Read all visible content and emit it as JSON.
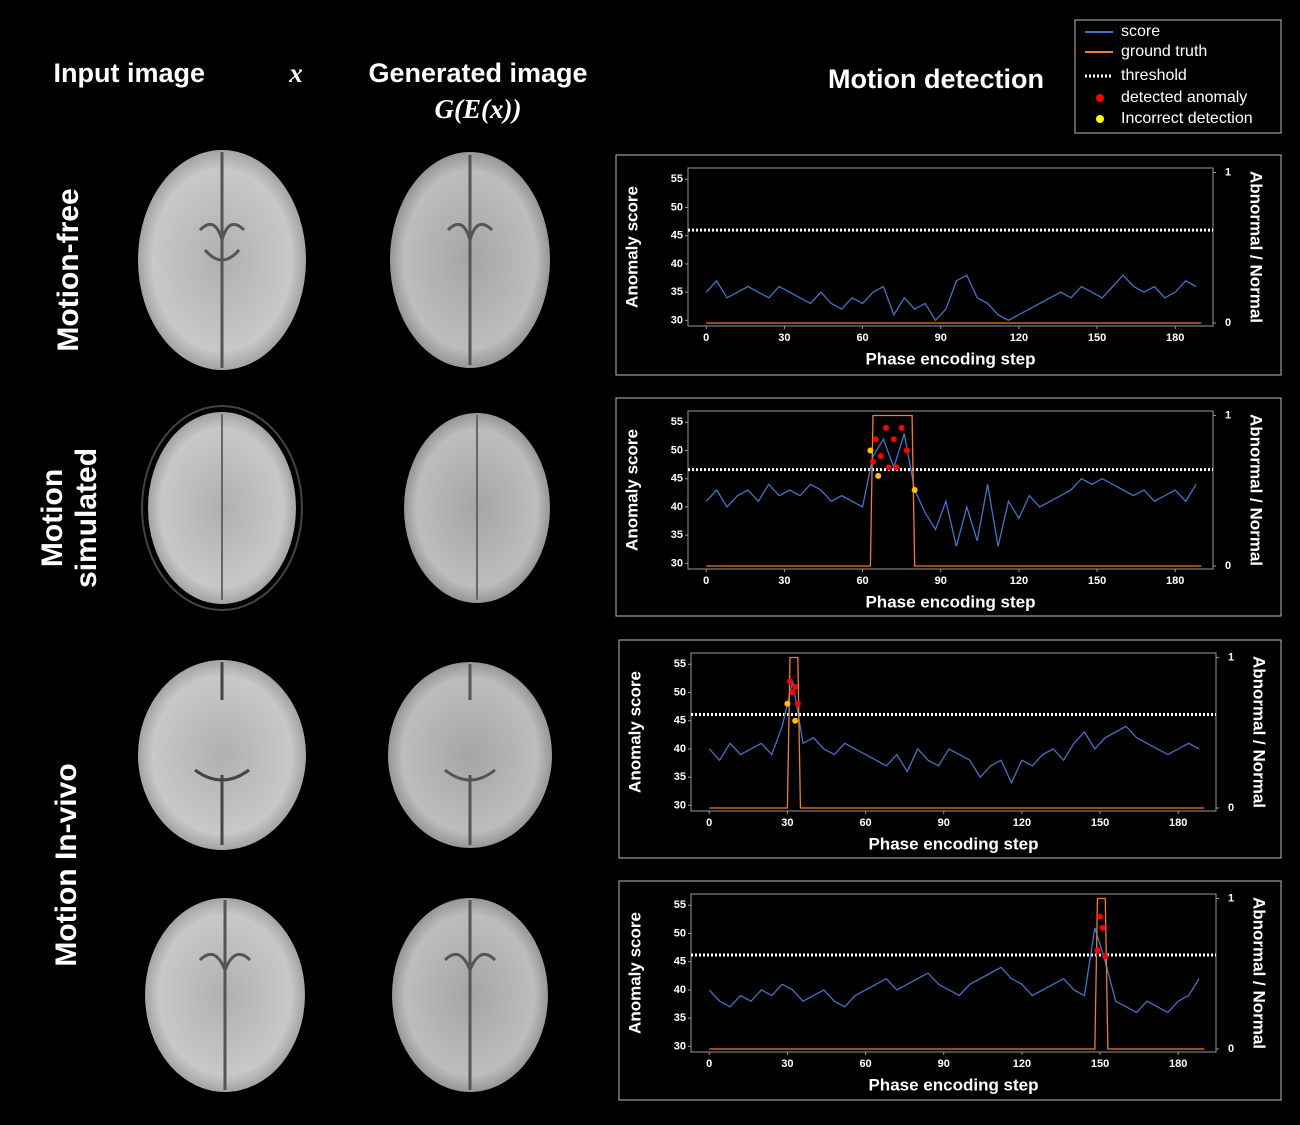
{
  "columns": [
    {
      "text": "Input image",
      "math": "x"
    },
    {
      "text": "Generated image",
      "math": "G(E(x))"
    },
    {
      "text": "Motion detection"
    }
  ],
  "row_labels": [
    [
      "Motion-free"
    ],
    [
      "Motion",
      "simulated"
    ],
    [
      "Motion In-vivo"
    ]
  ],
  "legend": [
    {
      "label": "score",
      "color": "#4472c4",
      "kind": "line"
    },
    {
      "label": "ground truth",
      "color": "#ed7d31",
      "kind": "line"
    },
    {
      "label": "threshold",
      "color": "#ffffff",
      "kind": "dotted"
    },
    {
      "label": "detected anomaly",
      "color": "#ff0000",
      "kind": "dot"
    },
    {
      "label": "Incorrect detection",
      "color": "#ffff00",
      "kind": "dot"
    }
  ],
  "chart_data": [
    {
      "type": "line",
      "ylabel": "Anomaly score",
      "y2label": "Abnormal / Normal",
      "xlabel": "Phase encoding step",
      "xlim": [
        -7,
        194.5
      ],
      "xticks": [
        0,
        30,
        60,
        90,
        120,
        150,
        180
      ],
      "ylim": [
        29,
        57
      ],
      "yticks": [
        30,
        35,
        40,
        45,
        50,
        55
      ],
      "y2lim": [
        -0.02,
        1.03
      ],
      "y2ticks": [
        0,
        1
      ],
      "threshold": 46,
      "series": [
        {
          "color": "#4472c4",
          "x": [
            0,
            4,
            8,
            12,
            16,
            20,
            24,
            28,
            32,
            36,
            40,
            44,
            48,
            52,
            56,
            60,
            64,
            68,
            72,
            76,
            80,
            84,
            88,
            92,
            96,
            100,
            104,
            108,
            112,
            116,
            120,
            124,
            128,
            132,
            136,
            140,
            144,
            148,
            152,
            156,
            160,
            164,
            168,
            172,
            176,
            180,
            184,
            188
          ],
          "values": [
            35,
            37,
            34,
            35,
            36,
            35,
            34,
            36,
            35,
            34,
            33,
            35,
            33,
            32,
            34,
            33,
            35,
            36,
            31,
            34,
            32,
            33,
            30,
            32,
            37,
            38,
            34,
            33,
            31,
            30,
            31,
            32,
            33,
            34,
            35,
            34,
            36,
            35,
            34,
            36,
            38,
            36,
            35,
            36,
            34,
            35,
            37,
            36
          ]
        },
        {
          "color": "#ed7d31",
          "axis": "y2",
          "x": [
            0,
            190
          ],
          "values": [
            0,
            0
          ]
        }
      ],
      "points": []
    },
    {
      "type": "line",
      "ylabel": "Anomaly score",
      "y2label": "Abnormal / Normal",
      "xlabel": "Phase encoding step",
      "xlim": [
        -7,
        194.5
      ],
      "xticks": [
        0,
        30,
        60,
        90,
        120,
        150,
        180
      ],
      "ylim": [
        29,
        57
      ],
      "yticks": [
        30,
        35,
        40,
        45,
        50,
        55
      ],
      "y2lim": [
        -0.02,
        1.03
      ],
      "y2ticks": [
        0,
        1
      ],
      "threshold": 46.6,
      "series": [
        {
          "color": "#4472c4",
          "x": [
            0,
            4,
            8,
            12,
            16,
            20,
            24,
            28,
            32,
            36,
            40,
            44,
            48,
            52,
            56,
            60,
            64,
            68,
            72,
            76,
            80,
            84,
            88,
            92,
            96,
            100,
            104,
            108,
            112,
            116,
            120,
            124,
            128,
            132,
            136,
            140,
            144,
            148,
            152,
            156,
            160,
            164,
            168,
            172,
            176,
            180,
            184,
            188
          ],
          "values": [
            41,
            43,
            40,
            42,
            43,
            41,
            44,
            42,
            43,
            42,
            44,
            43,
            41,
            42,
            41,
            40,
            49,
            52,
            47,
            53,
            43,
            39,
            36,
            41,
            33,
            40,
            34,
            44,
            33,
            41,
            38,
            42,
            40,
            41,
            42,
            43,
            45,
            44,
            45,
            44,
            43,
            42,
            43,
            41,
            42,
            43,
            41,
            44
          ]
        },
        {
          "color": "#ed7d31",
          "axis": "y2",
          "x": [
            0,
            63,
            64,
            79,
            80,
            190
          ],
          "values": [
            0,
            0,
            1,
            1,
            0,
            0
          ]
        }
      ],
      "points": [
        {
          "x": 64,
          "y": 48,
          "color": "#ff0000"
        },
        {
          "x": 65,
          "y": 52,
          "color": "#ff0000"
        },
        {
          "x": 67,
          "y": 49,
          "color": "#ff0000"
        },
        {
          "x": 69,
          "y": 54,
          "color": "#ff0000"
        },
        {
          "x": 70,
          "y": 47,
          "color": "#ff0000"
        },
        {
          "x": 72,
          "y": 52,
          "color": "#ff0000"
        },
        {
          "x": 73,
          "y": 47,
          "color": "#ff0000"
        },
        {
          "x": 75,
          "y": 54,
          "color": "#ff0000"
        },
        {
          "x": 77,
          "y": 50,
          "color": "#ff0000"
        },
        {
          "x": 63,
          "y": 50,
          "color": "#ffc000"
        },
        {
          "x": 66,
          "y": 45.5,
          "color": "#ffc000"
        },
        {
          "x": 80,
          "y": 43,
          "color": "#ffc000"
        }
      ]
    },
    {
      "type": "line",
      "ylabel": "Anomaly score",
      "y2label": "Abnormal / Normal",
      "xlabel": "Phase encoding step",
      "xlim": [
        -7,
        194.5
      ],
      "xticks": [
        0,
        30,
        60,
        90,
        120,
        150,
        180
      ],
      "ylim": [
        29,
        57
      ],
      "yticks": [
        30,
        35,
        40,
        45,
        50,
        55
      ],
      "y2lim": [
        -0.02,
        1.03
      ],
      "y2ticks": [
        0,
        1
      ],
      "threshold": 46.1,
      "series": [
        {
          "color": "#4472c4",
          "x": [
            0,
            4,
            8,
            12,
            16,
            20,
            24,
            28,
            32,
            36,
            40,
            44,
            48,
            52,
            56,
            60,
            64,
            68,
            72,
            76,
            80,
            84,
            88,
            92,
            96,
            100,
            104,
            108,
            112,
            116,
            120,
            124,
            128,
            132,
            136,
            140,
            144,
            148,
            152,
            156,
            160,
            164,
            168,
            172,
            176,
            180,
            184,
            188
          ],
          "values": [
            40,
            38,
            41,
            39,
            40,
            41,
            39,
            44,
            52,
            41,
            42,
            40,
            39,
            41,
            40,
            39,
            38,
            37,
            39,
            36,
            40,
            38,
            37,
            40,
            39,
            38,
            35,
            37,
            38,
            34,
            38,
            37,
            39,
            40,
            38,
            41,
            43,
            40,
            42,
            43,
            44,
            42,
            41,
            40,
            39,
            40,
            41,
            40
          ]
        },
        {
          "color": "#ed7d31",
          "axis": "y2",
          "x": [
            0,
            30,
            31,
            34,
            35,
            190
          ],
          "values": [
            0,
            0,
            1,
            1,
            0,
            0
          ]
        }
      ],
      "points": [
        {
          "x": 31,
          "y": 52,
          "color": "#ff0000"
        },
        {
          "x": 32,
          "y": 50,
          "color": "#ff0000"
        },
        {
          "x": 33,
          "y": 51,
          "color": "#ff0000"
        },
        {
          "x": 34,
          "y": 48,
          "color": "#ff0000"
        },
        {
          "x": 30,
          "y": 48,
          "color": "#ffc000"
        },
        {
          "x": 33,
          "y": 45,
          "color": "#ffc000"
        }
      ]
    },
    {
      "type": "line",
      "ylabel": "Anomaly score",
      "y2label": "Abnormal / Normal",
      "xlabel": "Phase encoding step",
      "xlim": [
        -7,
        194.5
      ],
      "xticks": [
        0,
        30,
        60,
        90,
        120,
        150,
        180
      ],
      "ylim": [
        29,
        57
      ],
      "yticks": [
        30,
        35,
        40,
        45,
        50,
        55
      ],
      "y2lim": [
        -0.02,
        1.03
      ],
      "y2ticks": [
        0,
        1
      ],
      "threshold": 46.2,
      "series": [
        {
          "color": "#4472c4",
          "x": [
            0,
            4,
            8,
            12,
            16,
            20,
            24,
            28,
            32,
            36,
            40,
            44,
            48,
            52,
            56,
            60,
            64,
            68,
            72,
            76,
            80,
            84,
            88,
            92,
            96,
            100,
            104,
            108,
            112,
            116,
            120,
            124,
            128,
            132,
            136,
            140,
            144,
            148,
            152,
            156,
            160,
            164,
            168,
            172,
            176,
            180,
            184,
            188
          ],
          "values": [
            40,
            38,
            37,
            39,
            38,
            40,
            39,
            41,
            40,
            38,
            39,
            40,
            38,
            37,
            39,
            40,
            41,
            42,
            40,
            41,
            42,
            43,
            41,
            40,
            39,
            41,
            42,
            43,
            44,
            42,
            41,
            39,
            40,
            41,
            42,
            40,
            39,
            51,
            45,
            38,
            37,
            36,
            38,
            37,
            36,
            38,
            39,
            42
          ]
        },
        {
          "color": "#ed7d31",
          "axis": "y2",
          "x": [
            0,
            148,
            149,
            152,
            153,
            190
          ],
          "values": [
            0,
            0,
            1,
            1,
            0,
            0
          ]
        }
      ],
      "points": [
        {
          "x": 149,
          "y": 47,
          "color": "#ff0000"
        },
        {
          "x": 150,
          "y": 53,
          "color": "#ff0000"
        },
        {
          "x": 151,
          "y": 51,
          "color": "#ff0000"
        },
        {
          "x": 152,
          "y": 46,
          "color": "#ff0000"
        }
      ]
    }
  ]
}
